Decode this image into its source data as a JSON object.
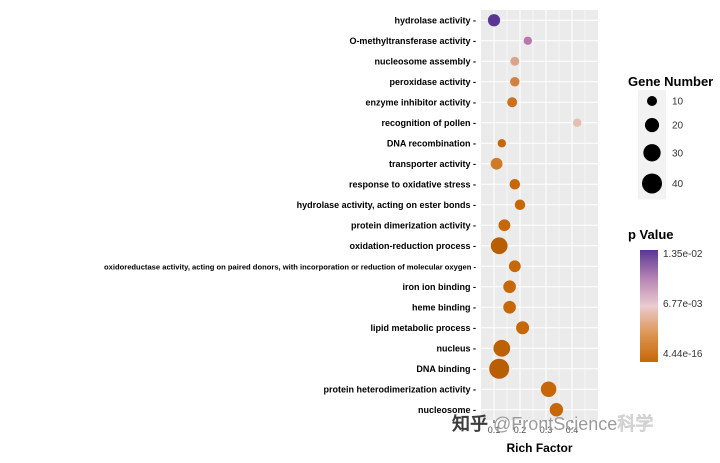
{
  "watermark": {
    "prefix": "知乎",
    "handle": " @FrontScience",
    "faint": "科学"
  },
  "chart_data": {
    "type": "scatter",
    "variant": "bubble",
    "title": "",
    "xlabel": "Rich Factor",
    "ylabel": "",
    "xlim": [
      0.05,
      0.5
    ],
    "x_ticks": [
      "0.1",
      "0.2",
      "0.3",
      "0.4"
    ],
    "x_tick_values": [
      0.1,
      0.2,
      0.3,
      0.4
    ],
    "grid": true,
    "panel_bg": "#EBEBEB",
    "grid_color": "#FFFFFF",
    "size_legend": {
      "title": "Gene Number",
      "values": [
        10,
        20,
        30,
        40
      ]
    },
    "color_legend": {
      "title": "p Value",
      "tick_labels": [
        "1.35e-02",
        "6.77e-03",
        "4.44e-16"
      ],
      "gradient": [
        "#5B3794",
        "#B583B4",
        "#EBCBCF",
        "#DD9552",
        "#C66708"
      ]
    },
    "points": [
      {
        "label": "hydrolase activity",
        "rich_factor": 0.1,
        "gene_number": 15,
        "p_color": "#5B3794"
      },
      {
        "label": "O-methyltransferase activity",
        "rich_factor": 0.23,
        "gene_number": 7,
        "p_color": "#B978AC"
      },
      {
        "label": "nucleosome assembly",
        "rich_factor": 0.18,
        "gene_number": 8,
        "p_color": "#DCA38B"
      },
      {
        "label": "peroxidase activity",
        "rich_factor": 0.18,
        "gene_number": 9,
        "p_color": "#D08140"
      },
      {
        "label": "enzyme inhibitor activity",
        "rich_factor": 0.17,
        "gene_number": 10,
        "p_color": "#CB701D"
      },
      {
        "label": "recognition of pollen",
        "rich_factor": 0.42,
        "gene_number": 7,
        "p_color": "#E5BEB3"
      },
      {
        "label": "DNA recombination",
        "rich_factor": 0.13,
        "gene_number": 7,
        "p_color": "#C66708"
      },
      {
        "label": "transporter activity",
        "rich_factor": 0.11,
        "gene_number": 14,
        "p_color": "#CE7A26"
      },
      {
        "label": "response to oxidative stress",
        "rich_factor": 0.18,
        "gene_number": 11,
        "p_color": "#C66708"
      },
      {
        "label": "hydrolase activity, acting on ester bonds",
        "rich_factor": 0.2,
        "gene_number": 11,
        "p_color": "#C66708"
      },
      {
        "label": "protein dimerization activity",
        "rich_factor": 0.14,
        "gene_number": 14,
        "p_color": "#C66708"
      },
      {
        "label": "oxidation-reduction process",
        "rich_factor": 0.12,
        "gene_number": 28,
        "p_color": "#B85E03"
      },
      {
        "label": "oxidoreductase activity, acting on paired donors, with incorporation or reduction of molecular oxygen",
        "rich_factor": 0.18,
        "gene_number": 14,
        "p_color": "#C66708"
      },
      {
        "label": "iron ion binding",
        "rich_factor": 0.16,
        "gene_number": 16,
        "p_color": "#C66708"
      },
      {
        "label": "heme binding",
        "rich_factor": 0.16,
        "gene_number": 16,
        "p_color": "#C66708"
      },
      {
        "label": "lipid metabolic process",
        "rich_factor": 0.21,
        "gene_number": 17,
        "p_color": "#C66708"
      },
      {
        "label": "nucleus",
        "rich_factor": 0.13,
        "gene_number": 28,
        "p_color": "#BD6204"
      },
      {
        "label": "DNA binding",
        "rich_factor": 0.12,
        "gene_number": 40,
        "p_color": "#B85E03"
      },
      {
        "label": "protein heterodimerization activity",
        "rich_factor": 0.31,
        "gene_number": 24,
        "p_color": "#C66708"
      },
      {
        "label": "nucleosome",
        "rich_factor": 0.34,
        "gene_number": 18,
        "p_color": "#C66708"
      }
    ]
  }
}
